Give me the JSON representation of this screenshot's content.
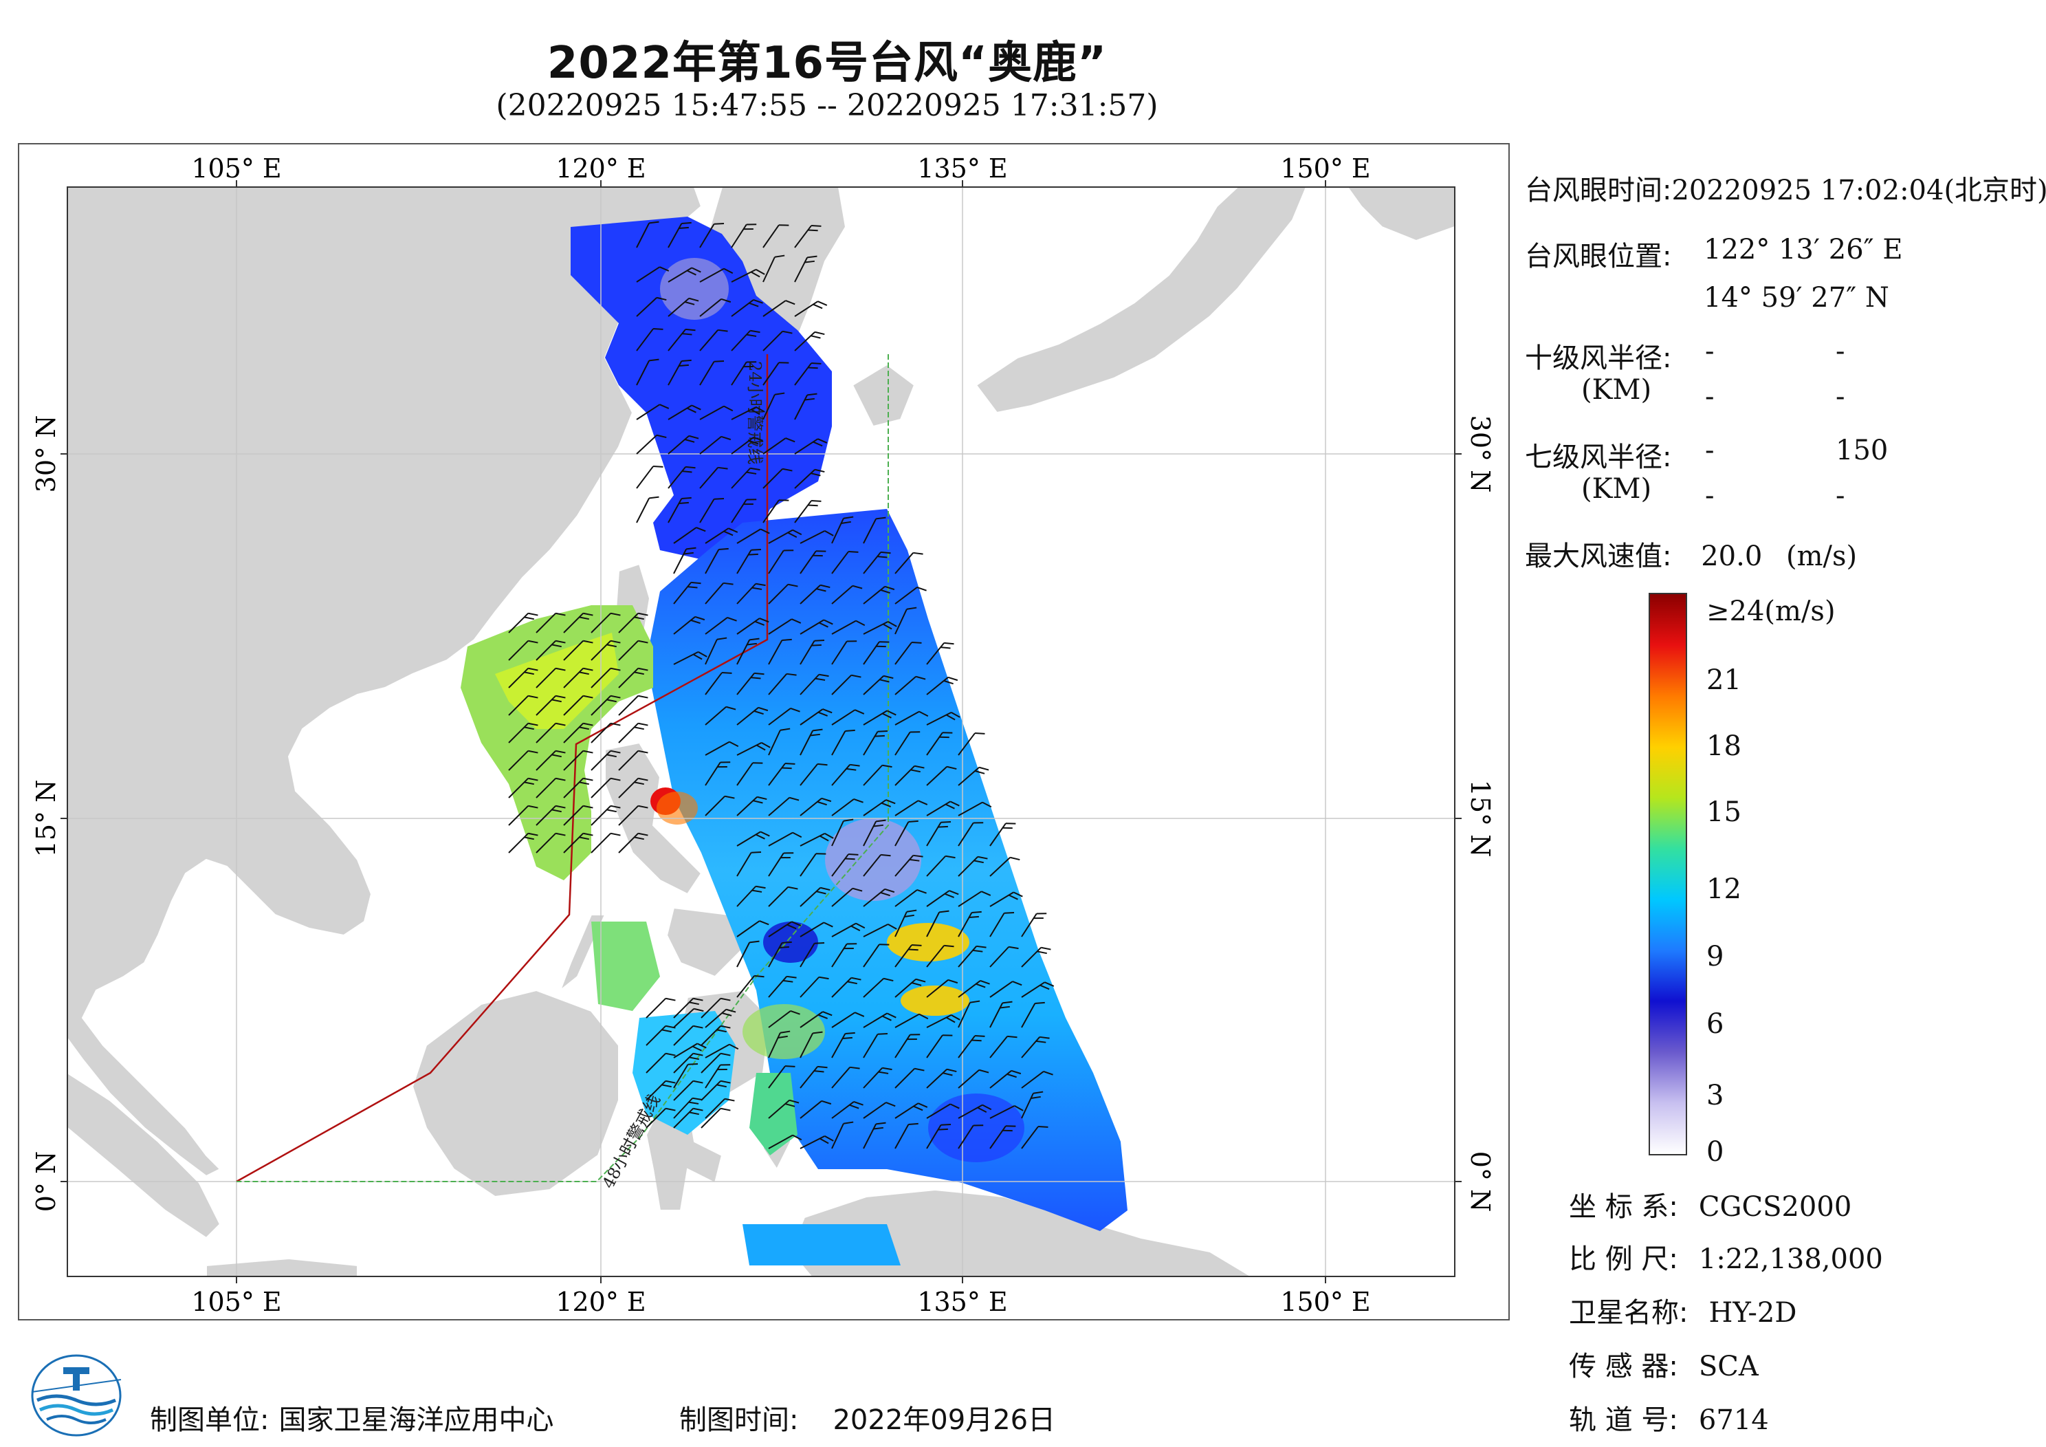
{
  "title": "2022年第16号台风“奥鹿”",
  "subtitle": "(20220925 15:47:55 -- 20220925 17:31:57)",
  "map": {
    "lon_ticks": [
      "105° E",
      "120° E",
      "135° E",
      "150° E"
    ],
    "lat_ticks": [
      "30° N",
      "15° N",
      "0° N"
    ],
    "track_24h_label": "24小时警戒线",
    "track_48h_label": "48小时警戒线",
    "colors": {
      "land": "#d3d3d3",
      "sea": "#ffffff",
      "warning_24h": "#b01010",
      "warning_48h": "#4caf50"
    }
  },
  "info": {
    "eye_time_label": "台风眼时间:",
    "eye_time_value": "20220925 17:02:04(北京时)",
    "eye_pos_label": "台风眼位置:",
    "eye_lon": "122° 13′ 26″ E",
    "eye_lat": "14° 59′ 27″ N",
    "r10_label": "十级风半径:",
    "r10_unit": "(KM)",
    "r10_values": [
      "-",
      "-",
      "-",
      "-"
    ],
    "r7_label": "七级风半径:",
    "r7_unit": "(KM)",
    "r7_values": [
      "-",
      "150",
      "-",
      "-"
    ],
    "max_wind_label": "最大风速值:",
    "max_wind_value": "20.0",
    "max_wind_unit": "(m/s)"
  },
  "colorbar": {
    "ticks": [
      "≥24(m/s)",
      "21",
      "18",
      "15",
      "12",
      "9",
      "6",
      "3",
      "0"
    ],
    "colors": [
      "#8b0000",
      "#e81010",
      "#ff7a00",
      "#ffd000",
      "#b5e61d",
      "#33e0a0",
      "#00c8ff",
      "#1e7bff",
      "#1010d0",
      "#6a5acd",
      "#c8c0f0",
      "#ffffff"
    ]
  },
  "meta": {
    "coord_label": "坐 标 系:",
    "coord_value": "CGCS2000",
    "scale_label": "比 例 尺:",
    "scale_value": "1:22,138,000",
    "satellite_label": "卫星名称:",
    "satellite_value": "HY-2D",
    "sensor_label": "传 感 器:",
    "sensor_value": "SCA",
    "orbit_label": "轨 道 号:",
    "orbit_value": "6714"
  },
  "footer": {
    "maker_label": "制图单位:",
    "maker_value": "国家卫星海洋应用中心",
    "date_label": "制图时间:",
    "date_value": "2022年09月26日"
  }
}
